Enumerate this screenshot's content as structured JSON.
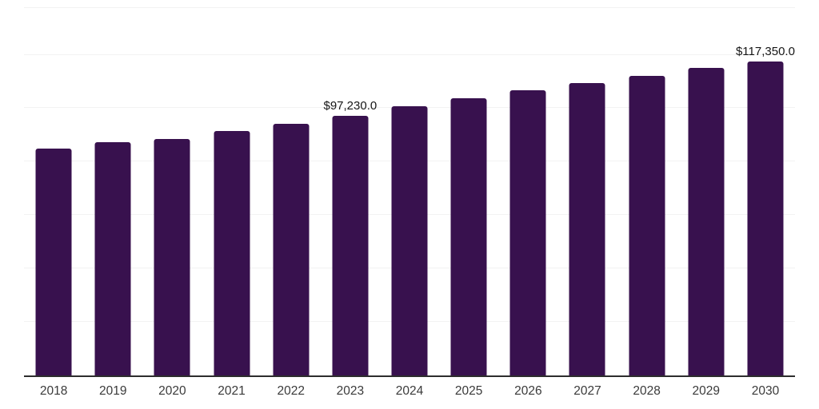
{
  "chart_data": {
    "type": "bar",
    "title": "",
    "xlabel": "",
    "ylabel": "",
    "categories": [
      "2018",
      "2019",
      "2020",
      "2021",
      "2022",
      "2023",
      "2024",
      "2025",
      "2026",
      "2027",
      "2028",
      "2029",
      "2030"
    ],
    "values": [
      85000,
      87200,
      88400,
      91400,
      94200,
      97230,
      100600,
      103700,
      106800,
      109500,
      112200,
      115200,
      117350
    ],
    "data_labels": [
      {
        "index": 5,
        "text": "$97,230.0"
      },
      {
        "index": 12,
        "text": "$117,350.0"
      }
    ],
    "ylim": [
      0,
      137500
    ],
    "gridline_step": 20000,
    "grid": true,
    "legend": "none",
    "colors": {
      "bar": "#38114e",
      "gridline": "#f2f2f2",
      "axis_line": "#2d2d2d",
      "data_label_text": "#161616",
      "tick_label_text": "#3a3a3a",
      "background": "#ffffff"
    }
  }
}
